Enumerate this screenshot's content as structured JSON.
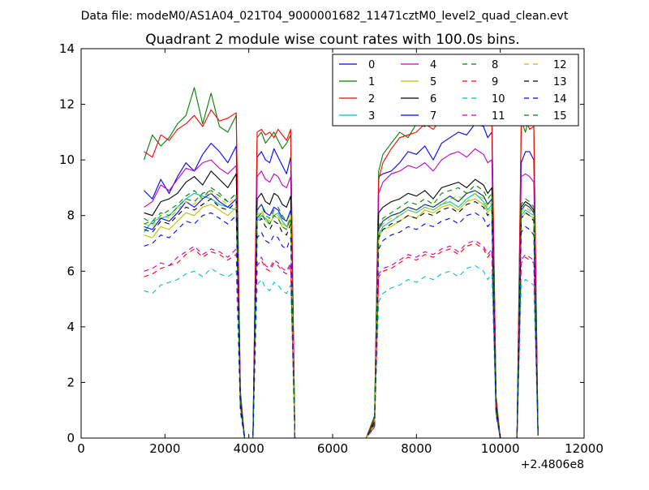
{
  "figure": {
    "suptitle": "Data file: modeM0/AS1A04_021T04_9000001682_11471cztM0_level2_quad_clean.evt"
  },
  "chart_data": {
    "type": "line",
    "title": "Quadrant 2 module wise count rates with 100.0s bins.",
    "xlabel": "",
    "ylabel": "",
    "x_offset_label": "+2.4806e8",
    "xlim": [
      0,
      12000
    ],
    "ylim": [
      0,
      14
    ],
    "x_ticks": [
      0,
      2000,
      4000,
      6000,
      8000,
      10000,
      12000
    ],
    "x_tick_labels": [
      "0",
      "2000",
      "4000",
      "6000",
      "8000",
      "10000",
      "12000"
    ],
    "y_ticks": [
      0,
      2,
      4,
      6,
      8,
      10,
      12,
      14
    ],
    "y_tick_labels": [
      "0",
      "2",
      "4",
      "6",
      "8",
      "10",
      "12",
      "14"
    ],
    "grid": false,
    "legend": {
      "position": "top-right",
      "columns": 4
    },
    "x": [
      1500,
      1700,
      1900,
      2100,
      2300,
      2500,
      2700,
      2900,
      3100,
      3300,
      3500,
      3700,
      3800,
      3900,
      4000,
      4100,
      4200,
      4300,
      4400,
      4500,
      4600,
      4700,
      4800,
      4900,
      5000,
      5100,
      5200,
      6000,
      6800,
      7000,
      7100,
      7200,
      7400,
      7600,
      7800,
      8000,
      8200,
      8400,
      8600,
      8800,
      9000,
      9200,
      9400,
      9600,
      9700,
      9800,
      9900,
      10000,
      10300,
      10400,
      10500,
      10600,
      10700,
      10800,
      10900
    ],
    "series": [
      {
        "name": "0",
        "color": "#0000ff",
        "dash": "solid",
        "values": [
          8.9,
          8.6,
          9.3,
          8.8,
          9.4,
          9.9,
          9.6,
          10.2,
          10.6,
          10.3,
          9.9,
          10.5,
          1.5,
          0,
          0,
          0,
          10.1,
          10.3,
          10.0,
          9.9,
          10.4,
          10.1,
          9.8,
          9.5,
          10.1,
          0,
          0,
          0,
          0,
          0.6,
          9.4,
          9.5,
          9.6,
          9.9,
          10.3,
          10.2,
          10.5,
          10.0,
          10.6,
          10.8,
          11.0,
          10.9,
          11.3,
          11.2,
          10.8,
          11.0,
          1.3,
          0,
          0,
          0,
          9.9,
          10.3,
          10.3,
          10.0,
          0.1
        ]
      },
      {
        "name": "1",
        "color": "#008000",
        "dash": "solid",
        "values": [
          10.0,
          10.9,
          10.5,
          10.8,
          11.3,
          11.6,
          12.6,
          11.3,
          12.4,
          11.2,
          11.0,
          11.6,
          1.7,
          0,
          0,
          0,
          10.8,
          11.0,
          10.6,
          10.8,
          11.0,
          10.7,
          10.4,
          10.6,
          10.9,
          0,
          0,
          0,
          0,
          0.8,
          9.6,
          10.2,
          10.6,
          11.0,
          10.8,
          11.3,
          11.2,
          11.5,
          11.9,
          12.1,
          11.6,
          12.1,
          12.3,
          11.9,
          12.2,
          11.4,
          1.5,
          0,
          0,
          0,
          11.4,
          11.0,
          11.6,
          11.3,
          0.1
        ]
      },
      {
        "name": "2",
        "color": "#ff0000",
        "dash": "solid",
        "values": [
          10.3,
          10.1,
          10.9,
          10.7,
          11.1,
          11.3,
          11.6,
          11.2,
          11.8,
          11.4,
          11.5,
          11.7,
          1.6,
          0,
          0,
          0,
          11.0,
          11.1,
          10.9,
          11.0,
          10.8,
          11.1,
          10.9,
          10.7,
          11.1,
          0,
          0,
          0,
          0,
          0.7,
          9.3,
          9.9,
          10.4,
          10.8,
          10.9,
          11.0,
          11.3,
          11.1,
          11.5,
          11.6,
          11.4,
          11.7,
          11.9,
          11.8,
          11.5,
          11.6,
          1.4,
          0,
          0,
          0,
          11.2,
          11.5,
          11.1,
          11.2,
          0.1
        ]
      },
      {
        "name": "3",
        "color": "#00bfbf",
        "dash": "solid",
        "values": [
          7.4,
          7.8,
          7.9,
          8.0,
          8.3,
          8.6,
          8.8,
          8.7,
          8.6,
          8.4,
          8.3,
          8.2,
          1.2,
          0,
          0,
          0,
          7.8,
          8.0,
          7.9,
          7.7,
          8.0,
          8.1,
          7.8,
          7.6,
          7.9,
          0,
          0,
          0,
          0,
          0.5,
          7.3,
          7.6,
          7.8,
          8.0,
          8.2,
          8.1,
          8.3,
          8.2,
          8.4,
          8.5,
          8.3,
          8.6,
          8.8,
          8.5,
          8.2,
          8.4,
          1.1,
          0,
          0,
          0,
          8.0,
          8.2,
          8.1,
          8.0,
          0.1
        ]
      },
      {
        "name": "4",
        "color": "#bf00bf",
        "dash": "solid",
        "values": [
          8.3,
          8.5,
          9.1,
          8.9,
          9.3,
          9.7,
          9.6,
          9.9,
          10.0,
          9.7,
          9.5,
          9.8,
          1.4,
          0,
          0,
          0,
          9.4,
          9.6,
          9.3,
          9.2,
          9.5,
          9.4,
          9.1,
          9.0,
          9.4,
          0,
          0,
          0,
          0,
          0.6,
          8.8,
          9.2,
          9.5,
          9.6,
          9.8,
          9.7,
          9.9,
          9.6,
          10.0,
          10.2,
          10.3,
          10.1,
          10.4,
          10.2,
          9.9,
          10.0,
          1.2,
          0,
          0,
          0,
          9.4,
          9.5,
          9.4,
          9.2,
          0.1
        ]
      },
      {
        "name": "5",
        "color": "#bfbf00",
        "dash": "solid",
        "values": [
          7.3,
          7.2,
          7.6,
          7.5,
          7.8,
          8.1,
          8.0,
          8.3,
          8.4,
          8.2,
          8.0,
          8.3,
          1.2,
          0,
          0,
          0,
          7.9,
          8.1,
          7.8,
          7.7,
          8.0,
          7.9,
          7.6,
          7.5,
          7.9,
          0,
          0,
          0,
          0,
          0.5,
          7.2,
          7.5,
          7.6,
          7.8,
          8.0,
          7.9,
          8.2,
          8.1,
          8.3,
          8.4,
          8.2,
          8.5,
          8.6,
          8.4,
          8.1,
          8.3,
          1.0,
          0,
          0,
          0,
          7.9,
          8.1,
          8.0,
          7.9,
          0.1
        ]
      },
      {
        "name": "6",
        "color": "#000000",
        "dash": "solid",
        "values": [
          8.1,
          8.0,
          8.5,
          8.6,
          8.8,
          9.2,
          9.4,
          9.1,
          9.6,
          9.3,
          9.0,
          9.5,
          1.3,
          0,
          0,
          0,
          8.6,
          8.8,
          8.5,
          8.4,
          8.8,
          8.7,
          8.4,
          8.3,
          8.7,
          0,
          0,
          0,
          0,
          0.6,
          8.1,
          8.3,
          8.5,
          8.6,
          8.8,
          8.7,
          8.9,
          8.6,
          9.0,
          9.1,
          9.2,
          9.0,
          9.3,
          9.1,
          8.8,
          9.0,
          1.1,
          0,
          0,
          0,
          8.3,
          8.5,
          8.4,
          8.2,
          0.1
        ]
      },
      {
        "name": "7",
        "color": "#0000ff",
        "dash": "solid",
        "values": [
          7.6,
          7.5,
          7.9,
          7.8,
          8.1,
          8.5,
          8.3,
          8.6,
          8.8,
          8.5,
          8.3,
          8.6,
          1.2,
          0,
          0,
          0,
          8.2,
          8.4,
          8.1,
          8.0,
          8.3,
          8.2,
          7.9,
          7.8,
          8.2,
          0,
          0,
          0,
          0,
          0.5,
          7.5,
          7.8,
          8.0,
          8.1,
          8.3,
          8.2,
          8.4,
          8.3,
          8.5,
          8.7,
          8.5,
          8.8,
          8.9,
          8.7,
          8.4,
          8.6,
          1.0,
          0,
          0,
          0,
          8.2,
          8.4,
          8.3,
          8.1,
          0.1
        ]
      },
      {
        "name": "8",
        "color": "#008000",
        "dash": "dashed",
        "values": [
          7.9,
          7.7,
          8.0,
          8.2,
          8.4,
          8.7,
          8.9,
          8.6,
          9.0,
          8.8,
          8.5,
          8.8,
          1.3,
          0,
          0,
          0,
          8.2,
          8.4,
          8.0,
          7.9,
          8.2,
          8.3,
          8.0,
          7.8,
          8.1,
          0,
          0,
          0,
          0,
          0.6,
          7.6,
          7.9,
          8.1,
          8.3,
          8.5,
          8.4,
          8.6,
          8.4,
          8.8,
          8.9,
          9.0,
          8.8,
          9.1,
          8.9,
          8.6,
          8.8,
          1.1,
          0,
          0,
          0,
          8.4,
          8.6,
          8.5,
          8.3,
          0.1
        ]
      },
      {
        "name": "9",
        "color": "#ff0000",
        "dash": "dashed",
        "values": [
          5.8,
          5.9,
          6.1,
          6.2,
          6.3,
          6.6,
          6.8,
          6.5,
          6.7,
          6.6,
          6.4,
          6.6,
          1.0,
          0,
          0,
          0,
          6.2,
          6.4,
          6.1,
          6.0,
          6.3,
          6.2,
          6.0,
          5.9,
          6.2,
          0,
          0,
          0,
          0,
          0.4,
          5.8,
          6.0,
          6.1,
          6.3,
          6.5,
          6.4,
          6.6,
          6.5,
          6.7,
          6.8,
          6.6,
          6.9,
          7.0,
          6.8,
          6.5,
          6.7,
          0.9,
          0,
          0,
          0,
          6.3,
          6.5,
          6.4,
          6.3,
          0.1
        ]
      },
      {
        "name": "10",
        "color": "#00bfbf",
        "dash": "dashed",
        "values": [
          5.3,
          5.2,
          5.5,
          5.6,
          5.7,
          5.9,
          6.0,
          5.8,
          6.1,
          5.9,
          5.8,
          6.0,
          0.9,
          0,
          0,
          0,
          5.5,
          5.7,
          5.4,
          5.3,
          5.6,
          5.5,
          5.3,
          5.2,
          5.5,
          0,
          0,
          0,
          0,
          0.4,
          4.9,
          5.2,
          5.4,
          5.5,
          5.7,
          5.6,
          5.8,
          5.7,
          5.9,
          6.0,
          5.8,
          6.1,
          6.2,
          6.0,
          5.7,
          5.9,
          0.8,
          0,
          0,
          0,
          5.5,
          5.7,
          5.6,
          5.5,
          0.1
        ]
      },
      {
        "name": "11",
        "color": "#bf00bf",
        "dash": "dashed",
        "values": [
          6.0,
          6.1,
          6.3,
          6.2,
          6.5,
          6.7,
          6.9,
          6.6,
          6.8,
          6.7,
          6.5,
          6.8,
          1.0,
          0,
          0,
          0,
          6.3,
          6.5,
          6.2,
          6.1,
          6.4,
          6.3,
          6.1,
          6.0,
          6.3,
          0,
          0,
          0,
          0,
          0.4,
          5.9,
          6.1,
          6.2,
          6.4,
          6.6,
          6.5,
          6.7,
          6.6,
          6.8,
          6.9,
          6.7,
          7.0,
          7.1,
          6.9,
          6.6,
          6.8,
          0.9,
          0,
          0,
          0,
          6.4,
          6.6,
          6.5,
          6.4,
          0.1
        ]
      },
      {
        "name": "12",
        "color": "#bfbf00",
        "dash": "dashed",
        "values": [
          7.7,
          7.6,
          8.0,
          7.9,
          8.2,
          8.5,
          8.4,
          8.7,
          8.8,
          8.6,
          8.4,
          8.7,
          1.2,
          0,
          0,
          0,
          8.0,
          8.2,
          7.9,
          7.8,
          8.1,
          8.0,
          7.7,
          7.6,
          8.0,
          0,
          0,
          0,
          0,
          0.5,
          7.4,
          7.7,
          7.9,
          8.0,
          8.2,
          8.1,
          8.3,
          8.2,
          8.4,
          8.6,
          8.7,
          8.5,
          8.8,
          8.6,
          8.3,
          8.5,
          1.0,
          0,
          0,
          0,
          8.1,
          8.3,
          8.2,
          8.0,
          0.1
        ]
      },
      {
        "name": "13",
        "color": "#000000",
        "dash": "dashed",
        "values": [
          7.5,
          7.4,
          7.8,
          7.7,
          8.0,
          8.3,
          8.2,
          8.4,
          8.6,
          8.3,
          8.2,
          8.5,
          1.2,
          0,
          0,
          0,
          7.7,
          7.9,
          7.6,
          7.5,
          7.8,
          7.7,
          7.4,
          7.3,
          7.7,
          0,
          0,
          0,
          0,
          0.5,
          7.2,
          7.5,
          7.7,
          7.8,
          8.0,
          7.9,
          8.1,
          8.0,
          8.2,
          8.3,
          8.1,
          8.4,
          8.5,
          8.3,
          8.0,
          8.2,
          1.0,
          0,
          0,
          0,
          7.9,
          8.1,
          8.0,
          7.8,
          0.1
        ]
      },
      {
        "name": "14",
        "color": "#0000ff",
        "dash": "dashed",
        "values": [
          6.9,
          7.0,
          7.3,
          7.2,
          7.5,
          7.8,
          7.7,
          8.0,
          8.1,
          7.9,
          7.7,
          8.0,
          1.1,
          0,
          0,
          0,
          7.2,
          7.4,
          7.1,
          7.0,
          7.3,
          7.2,
          6.9,
          6.8,
          7.2,
          0,
          0,
          0,
          0,
          0.5,
          6.8,
          7.1,
          7.3,
          7.4,
          7.6,
          7.5,
          7.7,
          7.6,
          7.8,
          7.9,
          7.7,
          8.0,
          8.1,
          7.9,
          7.6,
          7.8,
          0.9,
          0,
          0,
          0,
          7.4,
          7.6,
          7.5,
          7.3,
          0.1
        ]
      },
      {
        "name": "15",
        "color": "#008000",
        "dash": "dashed",
        "values": [
          7.7,
          7.8,
          8.1,
          8.0,
          8.3,
          8.6,
          8.5,
          8.8,
          8.9,
          8.7,
          8.5,
          8.8,
          1.2,
          0,
          0,
          0,
          7.9,
          8.1,
          7.8,
          7.7,
          8.0,
          7.9,
          7.6,
          7.5,
          7.9,
          0,
          0,
          0,
          0,
          0.5,
          7.5,
          7.8,
          8.0,
          8.1,
          8.3,
          8.2,
          8.4,
          8.3,
          8.5,
          8.7,
          8.5,
          8.8,
          8.9,
          8.7,
          8.4,
          8.6,
          1.0,
          0,
          0,
          0,
          8.2,
          8.4,
          8.3,
          8.1,
          0.1
        ]
      }
    ]
  }
}
